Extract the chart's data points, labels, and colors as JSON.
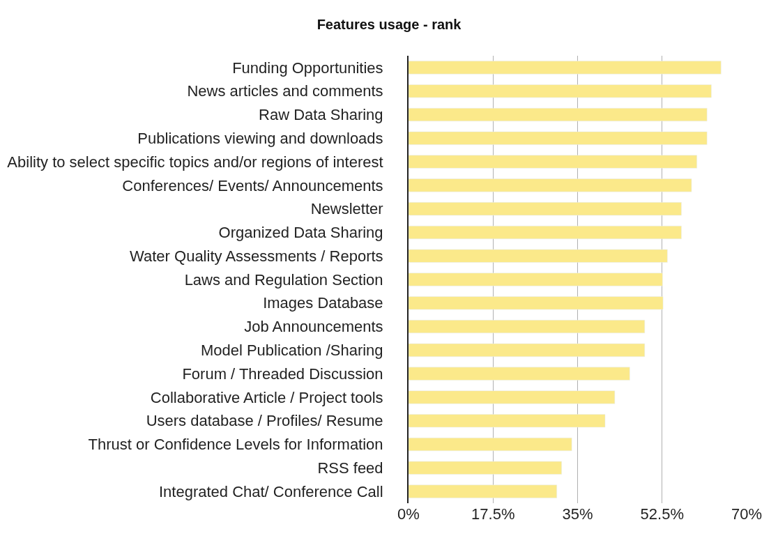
{
  "chart_data": {
    "type": "bar",
    "orientation": "horizontal",
    "title": "Features usage - rank",
    "categories": [
      "Funding Opportunities",
      "News articles and comments",
      "Raw Data Sharing",
      "Publications viewing and downloads",
      "Ability to select specific topics and/or regions of interest",
      "Conferences/ Events/ Announcements",
      "Newsletter",
      "Organized Data Sharing",
      "Water Quality Assessments / Reports",
      "Laws and Regulation Section",
      "Images Database",
      "Job Announcements",
      "Model Publication /Sharing",
      "Forum / Threaded Discussion",
      "Collaborative Article / Project tools",
      "Users database / Profiles/ Resume",
      "Thrust or Confidence Levels for Information",
      "RSS feed",
      "Integrated Chat/ Conference Call"
    ],
    "values": [
      64.7,
      62.7,
      61.8,
      61.8,
      59.7,
      58.6,
      56.5,
      56.5,
      53.6,
      52.6,
      52.7,
      48.9,
      48.9,
      45.8,
      42.7,
      40.7,
      33.8,
      31.7,
      30.7
    ],
    "color": "#fbe98a",
    "xlim": [
      0,
      70
    ],
    "xticks": [
      {
        "value": 0,
        "label": "0%"
      },
      {
        "value": 17.5,
        "label": "17.5%"
      },
      {
        "value": 35,
        "label": "35%"
      },
      {
        "value": 52.5,
        "label": "52.5%"
      },
      {
        "value": 70,
        "label": "70%"
      }
    ],
    "grid": "x"
  }
}
